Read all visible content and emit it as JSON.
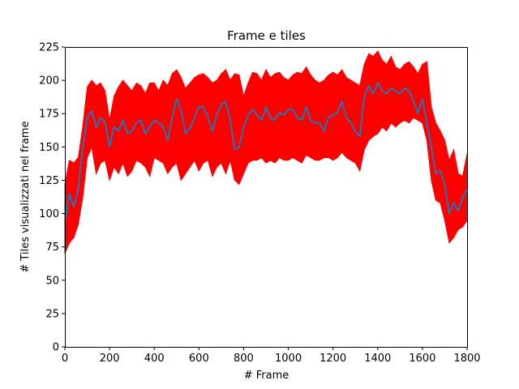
{
  "chart_data": {
    "type": "line",
    "title": "Frame e tiles",
    "xlabel": "# Frame",
    "ylabel": "# Tiles visualizzati nel frame",
    "xlim": [
      0,
      1800
    ],
    "ylim": [
      0,
      225
    ],
    "xticks": [
      0,
      200,
      400,
      600,
      800,
      1000,
      1200,
      1400,
      1600,
      1800
    ],
    "yticks": [
      0,
      25,
      50,
      75,
      100,
      125,
      150,
      175,
      200,
      225
    ],
    "grid": false,
    "series": [
      {
        "kind": "band",
        "color": "#ff0000",
        "x": [
          0,
          20,
          40,
          60,
          80,
          100,
          120,
          140,
          160,
          180,
          200,
          220,
          240,
          260,
          280,
          300,
          320,
          340,
          360,
          380,
          400,
          420,
          440,
          460,
          480,
          500,
          520,
          540,
          560,
          580,
          600,
          620,
          640,
          660,
          680,
          700,
          720,
          740,
          760,
          780,
          800,
          820,
          840,
          860,
          880,
          900,
          920,
          940,
          960,
          980,
          1000,
          1020,
          1040,
          1060,
          1080,
          1100,
          1120,
          1140,
          1160,
          1180,
          1200,
          1220,
          1240,
          1260,
          1280,
          1300,
          1320,
          1340,
          1360,
          1380,
          1400,
          1420,
          1440,
          1460,
          1480,
          1500,
          1520,
          1540,
          1560,
          1580,
          1600,
          1620,
          1640,
          1660,
          1680,
          1700,
          1720,
          1740,
          1760,
          1780,
          1800
        ],
        "upper": [
          122,
          140,
          138,
          142,
          165,
          195,
          200,
          196,
          198,
          192,
          170,
          188,
          195,
          200,
          196,
          192,
          198,
          196,
          190,
          198,
          198,
          192,
          200,
          196,
          205,
          208,
          202,
          194,
          198,
          202,
          204,
          205,
          202,
          198,
          200,
          205,
          208,
          200,
          205,
          204,
          188,
          198,
          206,
          205,
          200,
          208,
          202,
          205,
          206,
          202,
          200,
          204,
          206,
          205,
          210,
          204,
          200,
          198,
          200,
          204,
          206,
          204,
          208,
          202,
          200,
          198,
          196,
          212,
          220,
          218,
          222,
          215,
          212,
          218,
          210,
          208,
          212,
          214,
          210,
          205,
          212,
          214,
          180,
          168,
          162,
          155,
          140,
          148,
          130,
          128,
          145
        ],
        "lower": [
          70,
          78,
          82,
          92,
          112,
          142,
          150,
          130,
          138,
          140,
          125,
          135,
          130,
          138,
          128,
          132,
          140,
          138,
          135,
          128,
          142,
          140,
          138,
          130,
          135,
          138,
          125,
          130,
          135,
          140,
          132,
          138,
          140,
          128,
          135,
          138,
          130,
          140,
          125,
          122,
          130,
          138,
          140,
          140,
          142,
          138,
          140,
          138,
          142,
          140,
          140,
          142,
          140,
          138,
          144,
          142,
          140,
          140,
          142,
          142,
          140,
          142,
          146,
          142,
          140,
          138,
          132,
          148,
          155,
          158,
          160,
          165,
          162,
          168,
          165,
          168,
          170,
          168,
          172,
          170,
          168,
          155,
          125,
          110,
          108,
          95,
          78,
          82,
          88,
          90,
          95
        ]
      },
      {
        "kind": "line",
        "color": "#1f77b4",
        "x": [
          0,
          20,
          40,
          60,
          80,
          100,
          120,
          140,
          160,
          180,
          200,
          220,
          240,
          260,
          280,
          300,
          320,
          340,
          360,
          380,
          400,
          420,
          440,
          460,
          480,
          500,
          520,
          540,
          560,
          580,
          600,
          620,
          640,
          660,
          680,
          700,
          720,
          740,
          760,
          780,
          800,
          820,
          840,
          860,
          880,
          900,
          920,
          940,
          960,
          980,
          1000,
          1020,
          1040,
          1060,
          1080,
          1100,
          1120,
          1140,
          1160,
          1180,
          1200,
          1220,
          1240,
          1260,
          1280,
          1300,
          1320,
          1340,
          1360,
          1380,
          1400,
          1420,
          1440,
          1460,
          1480,
          1500,
          1520,
          1540,
          1560,
          1580,
          1600,
          1620,
          1640,
          1660,
          1680,
          1700,
          1720,
          1740,
          1760,
          1780,
          1800
        ],
        "values": [
          92,
          115,
          105,
          118,
          150,
          172,
          177,
          165,
          172,
          168,
          150,
          165,
          162,
          170,
          160,
          162,
          168,
          170,
          160,
          165,
          170,
          168,
          165,
          155,
          172,
          186,
          178,
          160,
          164,
          172,
          180,
          180,
          172,
          162,
          174,
          182,
          184,
          170,
          148,
          150,
          165,
          174,
          178,
          174,
          170,
          180,
          172,
          170,
          176,
          174,
          178,
          178,
          172,
          170,
          180,
          170,
          168,
          168,
          162,
          172,
          174,
          176,
          184,
          172,
          168,
          162,
          158,
          188,
          196,
          190,
          198,
          192,
          190,
          194,
          192,
          190,
          194,
          192,
          184,
          175,
          186,
          168,
          150,
          130,
          132,
          122,
          100,
          108,
          102,
          112,
          118
        ]
      }
    ]
  }
}
